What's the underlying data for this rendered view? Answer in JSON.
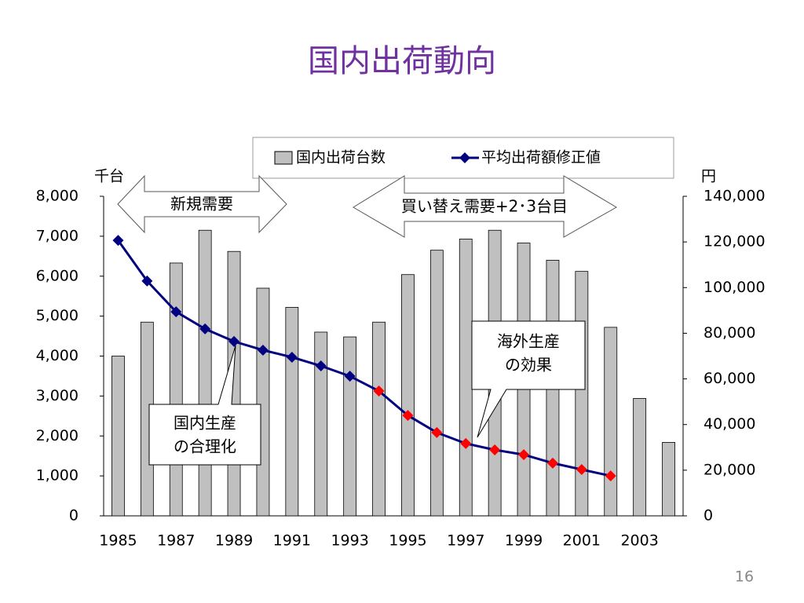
{
  "chart_data": {
    "type": "bar_line",
    "title": "国内出荷動向",
    "y_unit": "千台",
    "y2_unit": "円",
    "page_number": "16",
    "categories": [
      "1985",
      null,
      "1987",
      null,
      "1989",
      null,
      "1991",
      null,
      "1993",
      null,
      "1995",
      null,
      "1997",
      null,
      "1999",
      null,
      "2001",
      null,
      "2003",
      null
    ],
    "series": [
      {
        "name": "国内出荷台数",
        "type": "bar",
        "color": "#c0c0c0",
        "values": [
          4000,
          4850,
          6330,
          7150,
          6620,
          5700,
          5220,
          4600,
          4480,
          4850,
          6040,
          6650,
          6930,
          7150,
          6830,
          6400,
          6120,
          4720,
          2940,
          1840
        ]
      },
      {
        "name": "平均出荷額修正値",
        "type": "line",
        "axis": "y2",
        "color": "#000080",
        "marker_colors": [
          "#000080",
          "#000080",
          "#000080",
          "#000080",
          "#000080",
          "#000080",
          "#000080",
          "#000080",
          "#000080",
          "#ff0000",
          "#ff0000",
          "#ff0000",
          "#ff0000",
          "#ff0000",
          "#ff0000",
          "#ff0000",
          "#ff0000",
          "#ff0000",
          null,
          null
        ],
        "values": [
          120700,
          102900,
          89400,
          81900,
          76400,
          72600,
          69500,
          65700,
          61200,
          54700,
          44000,
          36500,
          31700,
          28900,
          26800,
          23100,
          20300,
          17500,
          null,
          null
        ]
      }
    ],
    "ylim": [
      0,
      8000
    ],
    "yticks": [
      0,
      {
        "value": 1000,
        "label": "1,000"
      },
      {
        "value": 2000,
        "label": "2,000"
      },
      {
        "value": 3000,
        "label": "3,000"
      },
      {
        "value": 4000,
        "label": "4,000"
      },
      {
        "value": 5000,
        "label": "5,000"
      },
      {
        "value": 6000,
        "label": "6,000"
      },
      {
        "value": 7000,
        "label": "7,000"
      },
      {
        "value": 8000,
        "label": "8,000"
      }
    ],
    "y2lim": [
      0,
      140000
    ],
    "y2ticks": [
      0,
      {
        "value": 20000,
        "label": "20,000"
      },
      {
        "value": 40000,
        "label": "40,000"
      },
      {
        "value": 60000,
        "label": "60,000"
      },
      {
        "value": 80000,
        "label": "80,000"
      },
      {
        "value": 100000,
        "label": "100,000"
      },
      {
        "value": 120000,
        "label": "120,000"
      },
      {
        "value": 140000,
        "label": "140,000"
      }
    ],
    "annotations": {
      "new_demand": "新規需要",
      "replacement_demand": "買い替え需要+2･3台目",
      "overseas": [
        "海外生産",
        "の効果"
      ],
      "domestic": [
        "国内生産",
        "の合理化"
      ]
    }
  }
}
